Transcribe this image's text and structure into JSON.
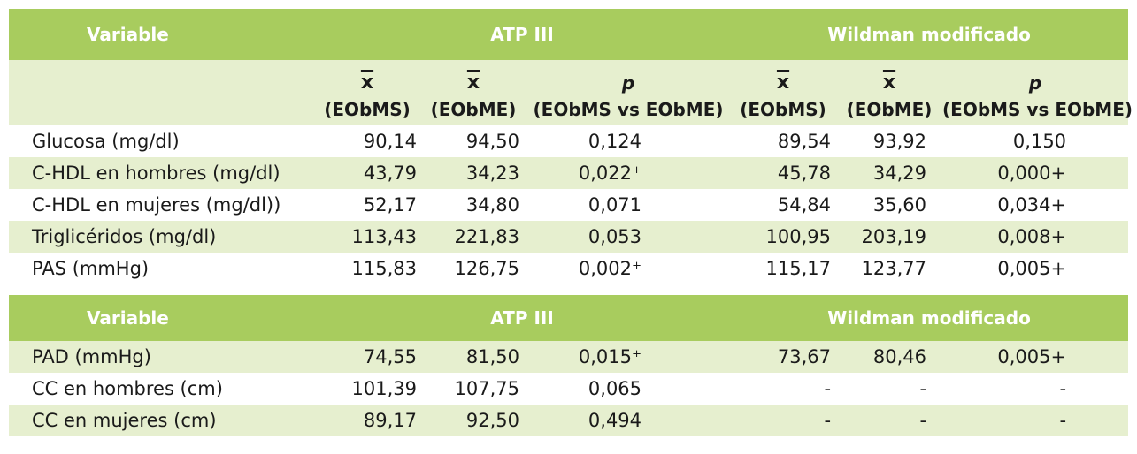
{
  "header": {
    "variable": "Variable",
    "atp": "ATP III",
    "wildman": "Wildman modificado"
  },
  "subheader": {
    "mean_symbol": "x",
    "p_symbol": "p",
    "col_eobms": "(EObMS)",
    "col_eobme": "(EObME)",
    "col_p": "(EObMS vs EObME)"
  },
  "rows_top": [
    {
      "label": "Glucosa (mg/dl)",
      "v": [
        "90,14",
        "94,50",
        "0,124",
        "89,54",
        "93,92",
        "0,150"
      ]
    },
    {
      "label": "C-HDL en hombres (mg/dl)",
      "v": [
        "43,79",
        "34,23",
        "0,022⁺",
        "45,78",
        "34,29",
        "0,000+"
      ]
    },
    {
      "label": "C-HDL en mujeres (mg/dl))",
      "v": [
        "52,17",
        "34,80",
        "0,071",
        "54,84",
        "35,60",
        "0,034+"
      ]
    },
    {
      "label": "Triglicéridos (mg/dl)",
      "v": [
        "113,43",
        "221,83",
        "0,053",
        "100,95",
        "203,19",
        "0,008+"
      ]
    },
    {
      "label": "PAS (mmHg)",
      "v": [
        "115,83",
        "126,75",
        "0,002⁺",
        "115,17",
        "123,77",
        "0,005+"
      ]
    }
  ],
  "header2": {
    "variable": "Variable",
    "atp": "ATP III",
    "wildman": "Wildman modificado"
  },
  "rows_bottom": [
    {
      "label": "PAD (mmHg)",
      "v": [
        "74,55",
        "81,50",
        "0,015⁺",
        "73,67",
        "80,46",
        "0,005+"
      ]
    },
    {
      "label": "CC en hombres (cm)",
      "v": [
        "101,39",
        "107,75",
        "0,065",
        "-",
        "-",
        "-"
      ]
    },
    {
      "label": "CC en mujeres (cm)",
      "v": [
        "89,17",
        "92,50",
        "0,494",
        "-",
        "-",
        "-"
      ]
    }
  ]
}
